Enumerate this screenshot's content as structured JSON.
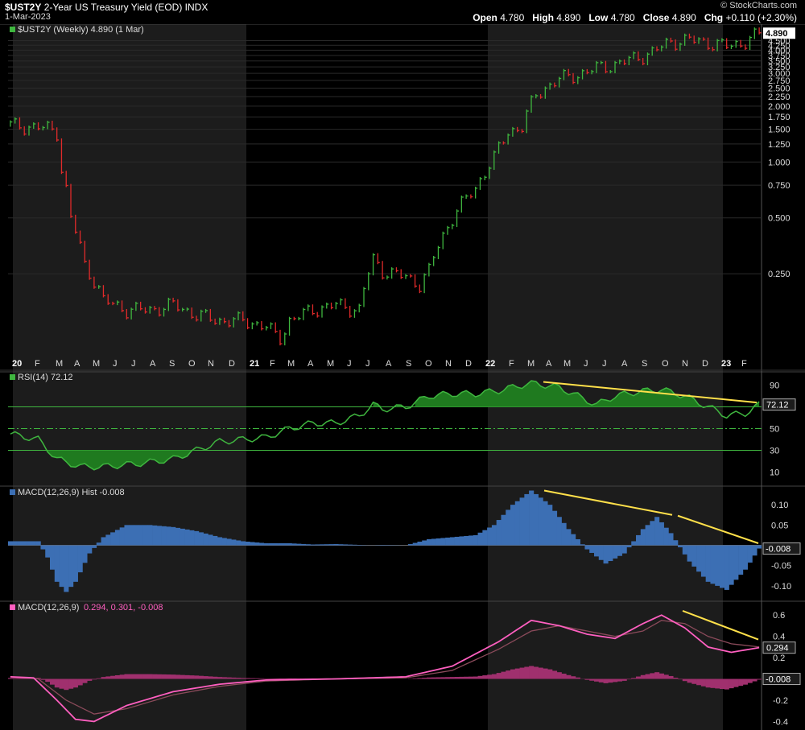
{
  "header": {
    "symbol": "$UST2Y",
    "name": "2-Year US Treasury Yield (EOD)",
    "exchange": "INDX",
    "date": "1-Mar-2023",
    "credit": "© StockCharts.com",
    "open_label": "Open",
    "open": "4.780",
    "high_label": "High",
    "high": "4.890",
    "low_label": "Low",
    "low": "4.780",
    "close_label": "Close",
    "close": "4.890",
    "chg_label": "Chg",
    "chg": "+0.110 (+2.30%)"
  },
  "colors": {
    "up": "#3fb63f",
    "down": "#e02a2a",
    "rsi": "#3fb63f",
    "macd_hist": "#3c6fb4",
    "macd_line": "#ff5fc0",
    "signal_line": "#8a4a5a",
    "trend": "#ffe04a",
    "grid": "#2a2a2a",
    "shade": "#1c1c1c"
  },
  "chart_data": [
    {
      "type": "line",
      "panel": "price",
      "legend": "$UST2Y (Weekly) 4.890 (1 Mar)",
      "scale": "log",
      "ytick_labels": [
        "4.890",
        "4.500",
        "4.250",
        "4.000",
        "3.750",
        "3.500",
        "3.250",
        "3.000",
        "2.750",
        "2.500",
        "2.250",
        "2.000",
        "1.750",
        "1.500",
        "1.250",
        "1.000",
        "0.750",
        "0.500",
        "0.250"
      ],
      "x_tick_labels": [
        "20",
        "F",
        "M",
        "A",
        "M",
        "J",
        "J",
        "A",
        "S",
        "O",
        "N",
        "D",
        "21",
        "F",
        "M",
        "A",
        "M",
        "J",
        "J",
        "A",
        "S",
        "O",
        "N",
        "D",
        "22",
        "F",
        "M",
        "A",
        "M",
        "J",
        "J",
        "A",
        "S",
        "O",
        "N",
        "D",
        "23",
        "F"
      ],
      "last_value": "4.890",
      "approx_path_keypoints": [
        [
          0,
          1.58
        ],
        [
          8,
          1.52
        ],
        [
          10,
          1.45
        ],
        [
          11,
          0.92
        ],
        [
          13,
          0.5
        ],
        [
          16,
          0.28
        ],
        [
          20,
          0.18
        ],
        [
          25,
          0.16
        ],
        [
          30,
          0.16
        ],
        [
          35,
          0.17
        ],
        [
          40,
          0.15
        ],
        [
          45,
          0.14
        ],
        [
          50,
          0.14
        ],
        [
          55,
          0.13
        ],
        [
          58,
          0.11
        ],
        [
          60,
          0.14
        ],
        [
          65,
          0.16
        ],
        [
          70,
          0.17
        ],
        [
          75,
          0.16
        ],
        [
          78,
          0.3
        ],
        [
          80,
          0.26
        ],
        [
          85,
          0.24
        ],
        [
          88,
          0.22
        ],
        [
          90,
          0.26
        ],
        [
          93,
          0.4
        ],
        [
          96,
          0.55
        ],
        [
          100,
          0.72
        ],
        [
          104,
          1.05
        ],
        [
          107,
          1.45
        ],
        [
          110,
          1.55
        ],
        [
          113,
          2.3
        ],
        [
          118,
          2.8
        ],
        [
          122,
          2.95
        ],
        [
          126,
          3.2
        ],
        [
          130,
          3.35
        ],
        [
          134,
          3.6
        ],
        [
          138,
          3.9
        ],
        [
          142,
          4.45
        ],
        [
          146,
          4.55
        ],
        [
          150,
          4.4
        ],
        [
          154,
          4.2
        ],
        [
          157,
          4.35
        ],
        [
          161,
          4.89
        ]
      ]
    },
    {
      "type": "line",
      "panel": "rsi",
      "legend": "RSI(14) 72.12",
      "ytick_labels": [
        "90",
        "70",
        "50",
        "30",
        "10"
      ],
      "levels": [
        70,
        50,
        30
      ],
      "last_value": "72.12",
      "approx_keypoints": [
        [
          0,
          45
        ],
        [
          6,
          40
        ],
        [
          10,
          22
        ],
        [
          15,
          15
        ],
        [
          20,
          15
        ],
        [
          28,
          18
        ],
        [
          35,
          22
        ],
        [
          40,
          30
        ],
        [
          45,
          38
        ],
        [
          50,
          40
        ],
        [
          55,
          42
        ],
        [
          60,
          50
        ],
        [
          65,
          55
        ],
        [
          70,
          55
        ],
        [
          75,
          62
        ],
        [
          78,
          72
        ],
        [
          80,
          68
        ],
        [
          85,
          70
        ],
        [
          90,
          80
        ],
        [
          95,
          82
        ],
        [
          100,
          82
        ],
        [
          105,
          85
        ],
        [
          112,
          92
        ],
        [
          118,
          88
        ],
        [
          122,
          80
        ],
        [
          126,
          72
        ],
        [
          130,
          80
        ],
        [
          135,
          84
        ],
        [
          140,
          86
        ],
        [
          145,
          80
        ],
        [
          150,
          70
        ],
        [
          154,
          62
        ],
        [
          158,
          64
        ],
        [
          161,
          72
        ]
      ],
      "trendline_label": "bearish divergence"
    },
    {
      "type": "bar",
      "panel": "macd_hist",
      "legend": "MACD(12,26,9) Hist -0.008",
      "ytick_labels": [
        "0.10",
        "0.05",
        "-0.008",
        "-0.05",
        "-0.10"
      ],
      "ylim": [
        -0.13,
        0.14
      ],
      "last_value": "-0.008",
      "approx_keypoints": [
        [
          0,
          0.01
        ],
        [
          6,
          0.01
        ],
        [
          8,
          -0.03
        ],
        [
          10,
          -0.09
        ],
        [
          12,
          -0.115
        ],
        [
          14,
          -0.09
        ],
        [
          17,
          -0.02
        ],
        [
          20,
          0.02
        ],
        [
          25,
          0.05
        ],
        [
          30,
          0.05
        ],
        [
          35,
          0.045
        ],
        [
          40,
          0.035
        ],
        [
          45,
          0.02
        ],
        [
          50,
          0.01
        ],
        [
          55,
          0.005
        ],
        [
          60,
          0.005
        ],
        [
          65,
          0.002
        ],
        [
          70,
          0.003
        ],
        [
          75,
          0.001
        ],
        [
          80,
          -0.001
        ],
        [
          85,
          0.0
        ],
        [
          90,
          0.015
        ],
        [
          95,
          0.02
        ],
        [
          100,
          0.025
        ],
        [
          104,
          0.05
        ],
        [
          108,
          0.1
        ],
        [
          112,
          0.135
        ],
        [
          116,
          0.1
        ],
        [
          120,
          0.04
        ],
        [
          124,
          -0.01
        ],
        [
          128,
          -0.045
        ],
        [
          132,
          -0.02
        ],
        [
          136,
          0.04
        ],
        [
          139,
          0.07
        ],
        [
          142,
          0.03
        ],
        [
          146,
          -0.04
        ],
        [
          150,
          -0.09
        ],
        [
          154,
          -0.11
        ],
        [
          158,
          -0.06
        ],
        [
          161,
          -0.008
        ]
      ]
    },
    {
      "type": "line",
      "panel": "macd",
      "legend": "MACD(12,26,9)",
      "legend_values": "0.294, 0.301, -0.008",
      "ytick_labels": [
        "0.6",
        "0.4",
        "0.294",
        "0.2",
        "-0.008",
        "-0.2",
        "-0.4"
      ],
      "ylim": [
        -0.45,
        0.7
      ],
      "last_value": "0.294",
      "last_hist": "-0.008",
      "macd_keypoints": [
        [
          0,
          0.02
        ],
        [
          5,
          0.01
        ],
        [
          10,
          -0.2
        ],
        [
          14,
          -0.38
        ],
        [
          18,
          -0.4
        ],
        [
          25,
          -0.25
        ],
        [
          35,
          -0.12
        ],
        [
          45,
          -0.05
        ],
        [
          55,
          -0.01
        ],
        [
          70,
          0.0
        ],
        [
          85,
          0.02
        ],
        [
          95,
          0.12
        ],
        [
          105,
          0.35
        ],
        [
          112,
          0.55
        ],
        [
          118,
          0.5
        ],
        [
          124,
          0.42
        ],
        [
          130,
          0.38
        ],
        [
          136,
          0.52
        ],
        [
          140,
          0.6
        ],
        [
          145,
          0.48
        ],
        [
          150,
          0.3
        ],
        [
          155,
          0.25
        ],
        [
          161,
          0.294
        ]
      ],
      "signal_keypoints": [
        [
          0,
          0.02
        ],
        [
          6,
          0.0
        ],
        [
          12,
          -0.2
        ],
        [
          18,
          -0.33
        ],
        [
          25,
          -0.28
        ],
        [
          35,
          -0.15
        ],
        [
          45,
          -0.07
        ],
        [
          55,
          -0.02
        ],
        [
          70,
          0.0
        ],
        [
          85,
          0.01
        ],
        [
          95,
          0.08
        ],
        [
          105,
          0.28
        ],
        [
          112,
          0.45
        ],
        [
          118,
          0.5
        ],
        [
          124,
          0.45
        ],
        [
          130,
          0.4
        ],
        [
          136,
          0.45
        ],
        [
          140,
          0.55
        ],
        [
          145,
          0.52
        ],
        [
          150,
          0.4
        ],
        [
          155,
          0.33
        ],
        [
          161,
          0.301
        ]
      ]
    }
  ]
}
